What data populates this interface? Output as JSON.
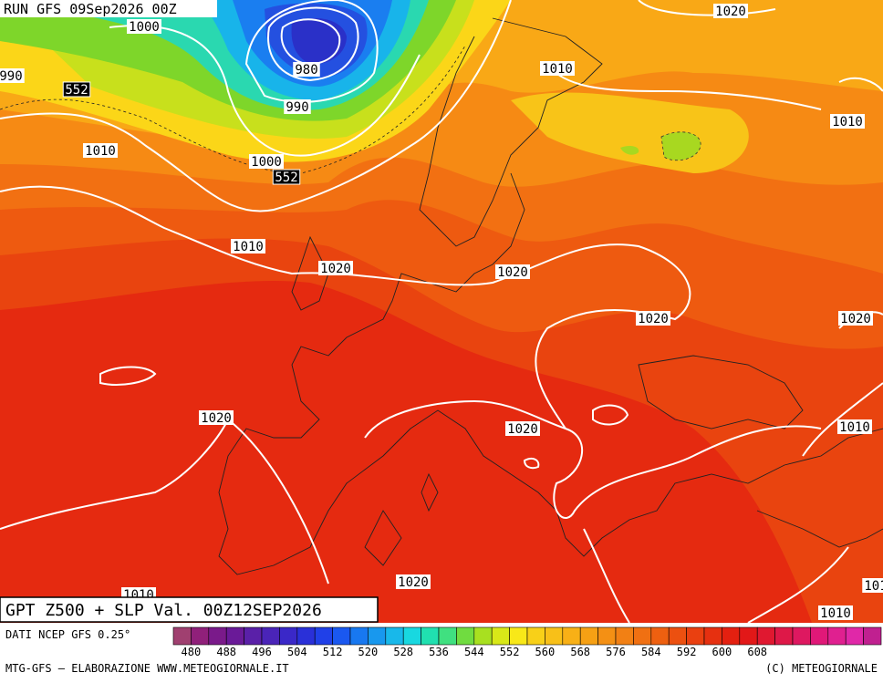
{
  "header": {
    "run": "RUN GFS 09Sep2026 00Z",
    "product": "GPT Z500 + SLP Val. 00Z12SEP2026"
  },
  "isobar_labels": [
    "1000",
    "990",
    "552",
    "980",
    "990",
    "1010",
    "1000",
    "552",
    "1010",
    "1020",
    "1020",
    "1010",
    "1020",
    "1010",
    "1020",
    "1020",
    "1020",
    "1020",
    "1010",
    "1020",
    "1010",
    "1010",
    "101"
  ],
  "colorbar": {
    "ticks": [
      480,
      488,
      496,
      504,
      512,
      520,
      528,
      536,
      544,
      552,
      560,
      568,
      576,
      584,
      592,
      600,
      608
    ]
  },
  "footer": {
    "source": "DATI NCEP GFS 0.25°",
    "credit": "MTG-GFS — ELABORAZIONE WWW.METEOGIORNALE.IT",
    "copyright": "(C) METEOGIORNALE"
  }
}
